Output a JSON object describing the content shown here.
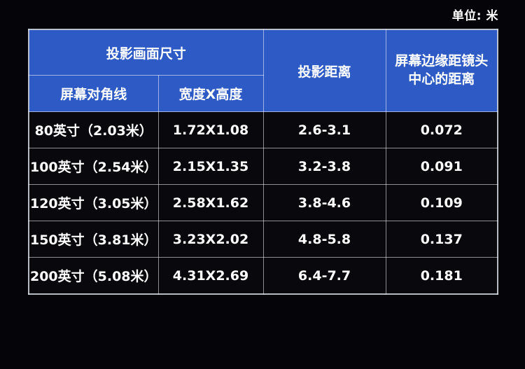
{
  "unit_label": "单位: 米",
  "colors": {
    "page_bg": "#050509",
    "header_bg": "#2d5ac4",
    "cell_bg": "#08080d",
    "border": "#9aa0aa",
    "text": "#ffffff"
  },
  "chart_data": {
    "type": "table",
    "unit_label": "单位: 米",
    "header": {
      "size_group": "投影画面尺寸",
      "diagonal": "屏幕对角线",
      "width_x_height": "宽度X高度",
      "projection_distance": "投影距离",
      "edge_to_lens": "屏幕边缘距镜头中心的距离"
    },
    "columns": [
      "屏幕对角线",
      "宽度X高度",
      "投影距离",
      "屏幕边缘距镜头中心的距离"
    ],
    "column_groups": [
      {
        "label": "投影画面尺寸",
        "spans": [
          "屏幕对角线",
          "宽度X高度"
        ]
      }
    ],
    "rows": [
      {
        "diagonal": "80英寸（2.03米）",
        "width_x_height": "1.72X1.08",
        "distance": "2.6-3.1",
        "edge": "0.072"
      },
      {
        "diagonal": "100英寸（2.54米）",
        "width_x_height": "2.15X1.35",
        "distance": "3.2-3.8",
        "edge": "0.091"
      },
      {
        "diagonal": "120英寸（3.05米）",
        "width_x_height": "2.58X1.62",
        "distance": "3.8-4.6",
        "edge": "0.109"
      },
      {
        "diagonal": "150英寸（3.81米）",
        "width_x_height": "3.23X2.02",
        "distance": "4.8-5.8",
        "edge": "0.137"
      },
      {
        "diagonal": "200英寸（5.08米）",
        "width_x_height": "4.31X2.69",
        "distance": "6.4-7.7",
        "edge": "0.181"
      }
    ]
  }
}
